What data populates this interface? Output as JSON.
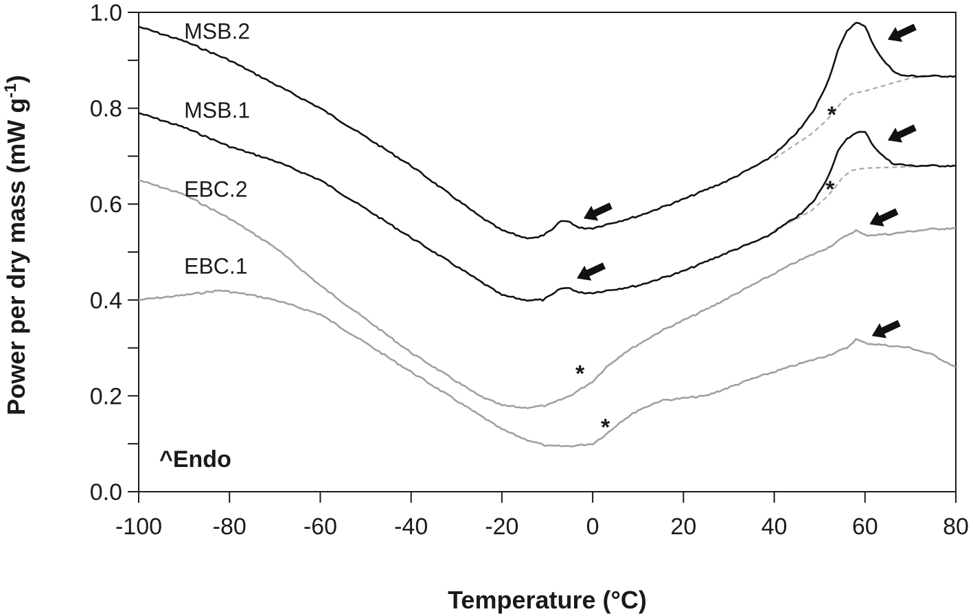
{
  "chart_data": {
    "type": "line",
    "title": "",
    "xlabel": "Temperature (°C)",
    "ylabel_main": "Power per dry mass (mW g",
    "ylabel_sup": "-1",
    "ylabel_close": ")",
    "xlim": [
      -100,
      80
    ],
    "ylim": [
      0.0,
      1.0
    ],
    "xticks": [
      -100,
      -80,
      -60,
      -40,
      -20,
      0,
      20,
      40,
      60,
      80
    ],
    "xtick_labels": [
      "-100",
      "-80",
      "-60",
      "-40",
      "-20",
      "0",
      "20",
      "40",
      "60",
      "80"
    ],
    "yticks": [
      0.0,
      0.2,
      0.4,
      0.6,
      0.8,
      1.0
    ],
    "ytick_labels": [
      "0.0",
      "0.2",
      "0.4",
      "0.6",
      "0.8",
      "1.0"
    ],
    "annotation": "^Endo",
    "colors": {
      "msb": "#111111",
      "ebc": "#a0a0a0",
      "baseline": "#a8a8a8",
      "arrow": "#111111"
    },
    "series": [
      {
        "name": "MSB.2",
        "color": "#111111",
        "label_pos": [
          -90,
          0.945
        ],
        "points": [
          [
            -100,
            0.97
          ],
          [
            -90,
            0.94
          ],
          [
            -80,
            0.9
          ],
          [
            -70,
            0.85
          ],
          [
            -60,
            0.8
          ],
          [
            -50,
            0.74
          ],
          [
            -40,
            0.68
          ],
          [
            -30,
            0.61
          ],
          [
            -25,
            0.575
          ],
          [
            -20,
            0.545
          ],
          [
            -15,
            0.53
          ],
          [
            -12,
            0.53
          ],
          [
            -9,
            0.545
          ],
          [
            -7,
            0.565
          ],
          [
            -5,
            0.563
          ],
          [
            -3,
            0.55
          ],
          [
            0,
            0.55
          ],
          [
            10,
            0.575
          ],
          [
            20,
            0.61
          ],
          [
            30,
            0.65
          ],
          [
            38,
            0.69
          ],
          [
            42,
            0.72
          ],
          [
            46,
            0.76
          ],
          [
            49,
            0.8
          ],
          [
            52,
            0.86
          ],
          [
            54,
            0.92
          ],
          [
            56,
            0.96
          ],
          [
            58,
            0.98
          ],
          [
            60,
            0.97
          ],
          [
            62,
            0.93
          ],
          [
            64,
            0.9
          ],
          [
            66,
            0.88
          ],
          [
            68,
            0.868
          ],
          [
            72,
            0.867
          ],
          [
            80,
            0.867
          ]
        ]
      },
      {
        "name": "MSB.1",
        "color": "#111111",
        "label_pos": [
          -90,
          0.78
        ],
        "points": [
          [
            -100,
            0.79
          ],
          [
            -90,
            0.76
          ],
          [
            -80,
            0.72
          ],
          [
            -70,
            0.69
          ],
          [
            -60,
            0.65
          ],
          [
            -50,
            0.59
          ],
          [
            -40,
            0.53
          ],
          [
            -30,
            0.47
          ],
          [
            -25,
            0.44
          ],
          [
            -20,
            0.41
          ],
          [
            -15,
            0.4
          ],
          [
            -11,
            0.4
          ],
          [
            -9,
            0.41
          ],
          [
            -7,
            0.424
          ],
          [
            -5,
            0.425
          ],
          [
            -3,
            0.415
          ],
          [
            0,
            0.415
          ],
          [
            10,
            0.43
          ],
          [
            20,
            0.46
          ],
          [
            30,
            0.5
          ],
          [
            38,
            0.53
          ],
          [
            42,
            0.555
          ],
          [
            46,
            0.58
          ],
          [
            49,
            0.61
          ],
          [
            52,
            0.66
          ],
          [
            54,
            0.71
          ],
          [
            56,
            0.735
          ],
          [
            58,
            0.75
          ],
          [
            60,
            0.75
          ],
          [
            62,
            0.72
          ],
          [
            64,
            0.7
          ],
          [
            66,
            0.685
          ],
          [
            70,
            0.68
          ],
          [
            80,
            0.68
          ]
        ]
      },
      {
        "name": "EBC.2",
        "color": "#a0a0a0",
        "label_pos": [
          -90,
          0.615
        ],
        "points": [
          [
            -100,
            0.65
          ],
          [
            -90,
            0.62
          ],
          [
            -80,
            0.57
          ],
          [
            -70,
            0.51
          ],
          [
            -60,
            0.43
          ],
          [
            -50,
            0.36
          ],
          [
            -40,
            0.29
          ],
          [
            -30,
            0.23
          ],
          [
            -25,
            0.2
          ],
          [
            -20,
            0.18
          ],
          [
            -15,
            0.175
          ],
          [
            -10,
            0.18
          ],
          [
            -5,
            0.2
          ],
          [
            0,
            0.23
          ],
          [
            3,
            0.26
          ],
          [
            7,
            0.29
          ],
          [
            15,
            0.335
          ],
          [
            25,
            0.38
          ],
          [
            35,
            0.43
          ],
          [
            45,
            0.48
          ],
          [
            52,
            0.51
          ],
          [
            56,
            0.535
          ],
          [
            58,
            0.545
          ],
          [
            60,
            0.535
          ],
          [
            65,
            0.537
          ],
          [
            70,
            0.543
          ],
          [
            75,
            0.548
          ],
          [
            80,
            0.55
          ]
        ]
      },
      {
        "name": "EBC.1",
        "color": "#a0a0a0",
        "label_pos": [
          -90,
          0.455
        ],
        "points": [
          [
            -100,
            0.4
          ],
          [
            -90,
            0.41
          ],
          [
            -82,
            0.42
          ],
          [
            -75,
            0.41
          ],
          [
            -70,
            0.4
          ],
          [
            -60,
            0.37
          ],
          [
            -50,
            0.31
          ],
          [
            -40,
            0.25
          ],
          [
            -30,
            0.19
          ],
          [
            -20,
            0.13
          ],
          [
            -15,
            0.11
          ],
          [
            -10,
            0.095
          ],
          [
            -5,
            0.095
          ],
          [
            0,
            0.1
          ],
          [
            3,
            0.12
          ],
          [
            6,
            0.145
          ],
          [
            10,
            0.17
          ],
          [
            15,
            0.19
          ],
          [
            25,
            0.2
          ],
          [
            35,
            0.235
          ],
          [
            45,
            0.265
          ],
          [
            52,
            0.285
          ],
          [
            56,
            0.3
          ],
          [
            58,
            0.318
          ],
          [
            60,
            0.31
          ],
          [
            65,
            0.305
          ],
          [
            70,
            0.3
          ],
          [
            75,
            0.285
          ],
          [
            80,
            0.26
          ]
        ]
      }
    ],
    "baselines": [
      {
        "name": "MSB.2 baseline",
        "points": [
          [
            40,
            0.695
          ],
          [
            44,
            0.72
          ],
          [
            48,
            0.745
          ],
          [
            51,
            0.77
          ],
          [
            53,
            0.79
          ],
          [
            55,
            0.815
          ],
          [
            57,
            0.83
          ],
          [
            60,
            0.836
          ],
          [
            70,
            0.863
          ],
          [
            75,
            0.867
          ]
        ]
      },
      {
        "name": "MSB.1 baseline",
        "points": [
          [
            40,
            0.545
          ],
          [
            44,
            0.565
          ],
          [
            48,
            0.585
          ],
          [
            51,
            0.61
          ],
          [
            53,
            0.63
          ],
          [
            55,
            0.655
          ],
          [
            57,
            0.67
          ],
          [
            60,
            0.675
          ],
          [
            70,
            0.678
          ],
          [
            75,
            0.68
          ]
        ]
      }
    ],
    "arrows": [
      {
        "tip": [
          -2,
          0.57
        ]
      },
      {
        "tip": [
          -3.5,
          0.445
        ]
      },
      {
        "tip": [
          65,
          0.943
        ]
      },
      {
        "tip": [
          65,
          0.733
        ]
      },
      {
        "tip": [
          61,
          0.558
        ]
      },
      {
        "tip": [
          61.5,
          0.325
        ]
      }
    ],
    "asterisks": [
      {
        "text": "*",
        "pos": [
          52.7,
          0.79
        ]
      },
      {
        "text": "*",
        "pos": [
          52.3,
          0.635
        ]
      },
      {
        "text": "*",
        "pos": [
          -2.8,
          0.25
        ]
      },
      {
        "text": "*",
        "pos": [
          2.8,
          0.138
        ]
      }
    ]
  }
}
